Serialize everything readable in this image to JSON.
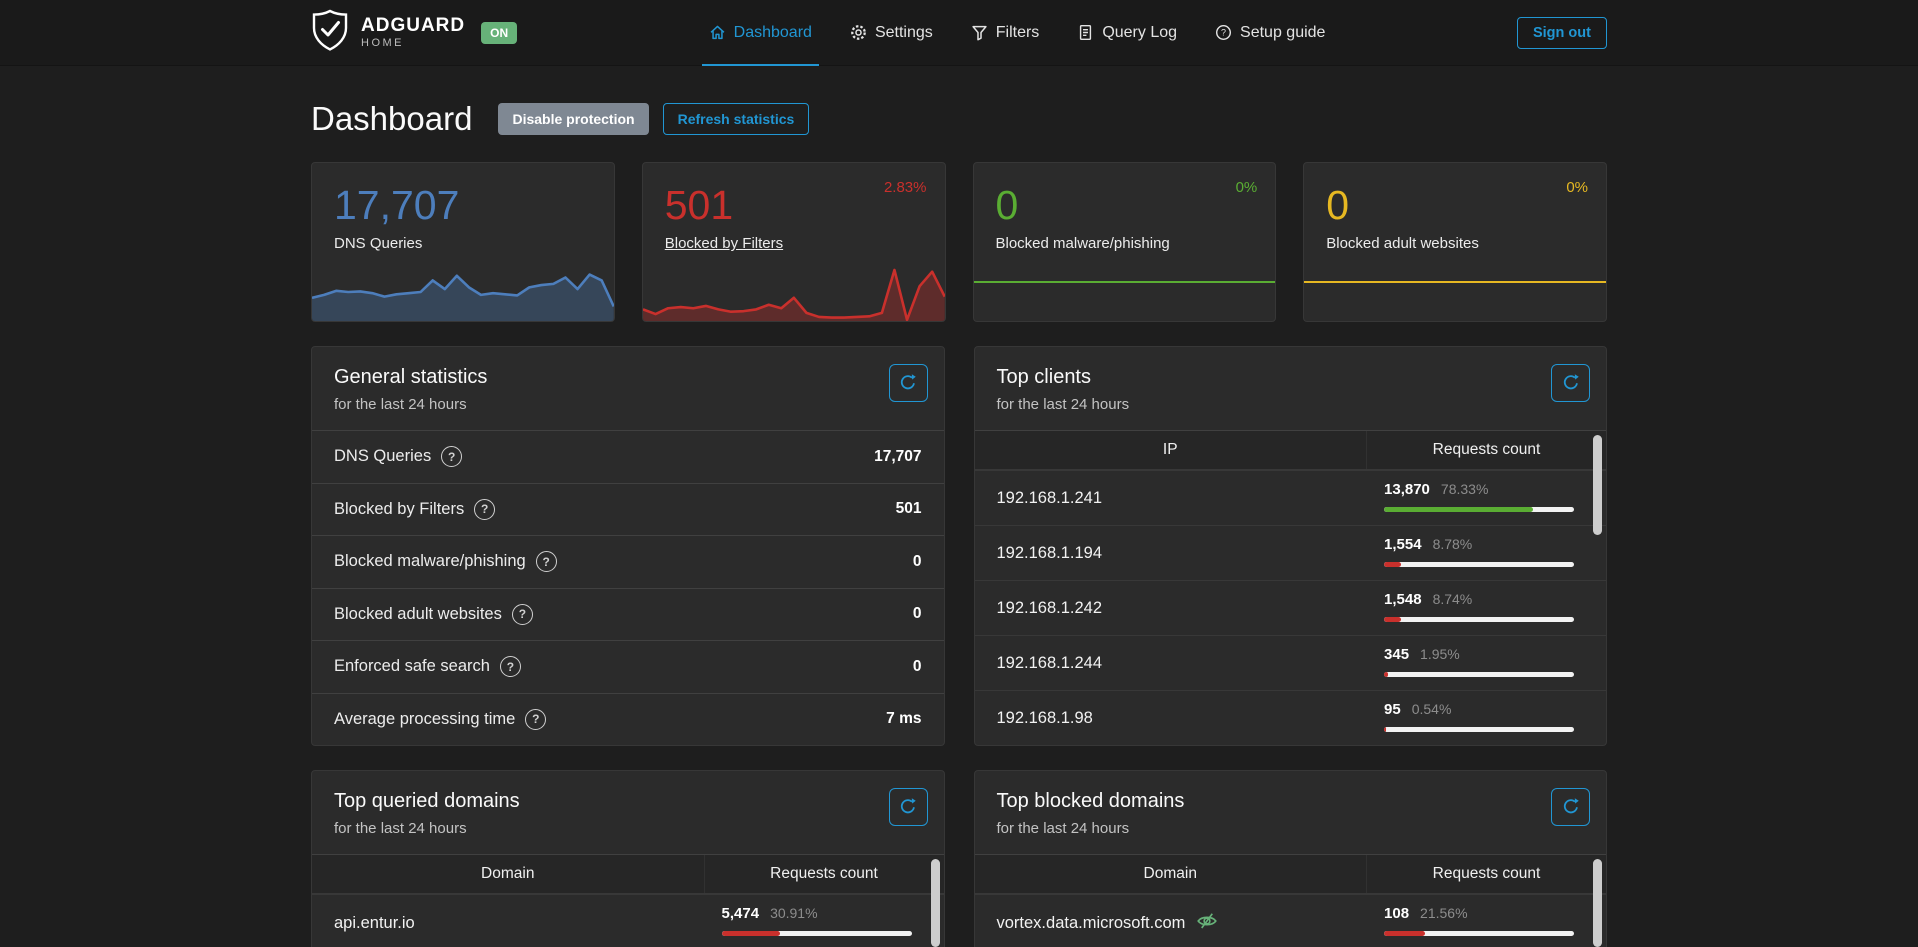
{
  "colors": {
    "accent": "#2196d3",
    "blue": "#4d7ebc",
    "red": "#c9302c",
    "green": "#5aad33",
    "yellow": "#e6b822",
    "badge_green": "#67b279"
  },
  "nav": {
    "brand": {
      "title": "ADGUARD",
      "subtitle": "HOME",
      "status": "ON"
    },
    "items": [
      {
        "label": "Dashboard",
        "icon": "home-icon",
        "active": true
      },
      {
        "label": "Settings",
        "icon": "gear-icon",
        "active": false
      },
      {
        "label": "Filters",
        "icon": "funnel-icon",
        "active": false
      },
      {
        "label": "Query Log",
        "icon": "document-icon",
        "active": false
      },
      {
        "label": "Setup guide",
        "icon": "help-circle-icon",
        "active": false
      }
    ],
    "signout_label": "Sign out"
  },
  "page": {
    "title": "Dashboard",
    "disable_protection_label": "Disable protection",
    "refresh_statistics_label": "Refresh statistics"
  },
  "stat_cards": [
    {
      "value": "17,707",
      "label": "DNS Queries",
      "percent": "",
      "color": "#4d7ebc",
      "spark": [
        60,
        55,
        48,
        50,
        49,
        52,
        58,
        54,
        52,
        50,
        30,
        45,
        22,
        42,
        55,
        52,
        54,
        56,
        42,
        38,
        36,
        25,
        45,
        20,
        30,
        75
      ]
    },
    {
      "value": "501",
      "label": "Blocked by Filters",
      "percent": "2.83%",
      "color": "#c9302c",
      "spark": [
        80,
        88,
        78,
        76,
        78,
        74,
        80,
        84,
        83,
        80,
        72,
        78,
        60,
        86,
        93,
        94,
        94,
        93,
        92,
        86,
        12,
        98,
        40,
        15,
        58
      ]
    },
    {
      "value": "0",
      "label": "Blocked malware/phishing",
      "percent": "0%",
      "color": "#5aad33",
      "spark": []
    },
    {
      "value": "0",
      "label": "Blocked adult websites",
      "percent": "0%",
      "color": "#e6b822",
      "spark": []
    }
  ],
  "panels": {
    "general": {
      "title": "General statistics",
      "subtitle": "for the last 24 hours",
      "rows": [
        {
          "label": "DNS Queries",
          "value": "17,707"
        },
        {
          "label": "Blocked by Filters",
          "value": "501"
        },
        {
          "label": "Blocked malware/phishing",
          "value": "0"
        },
        {
          "label": "Blocked adult websites",
          "value": "0"
        },
        {
          "label": "Enforced safe search",
          "value": "0"
        },
        {
          "label": "Average processing time",
          "value": "7 ms"
        }
      ]
    },
    "top_clients": {
      "title": "Top clients",
      "subtitle": "for the last 24 hours",
      "col1": "IP",
      "col2": "Requests count",
      "rows": [
        {
          "name": "192.168.1.241",
          "count": "13,870",
          "percent": "78.33%",
          "bar": 78.33,
          "bar_color": "#5aad33"
        },
        {
          "name": "192.168.1.194",
          "count": "1,554",
          "percent": "8.78%",
          "bar": 8.78,
          "bar_color": "#c9302c"
        },
        {
          "name": "192.168.1.242",
          "count": "1,548",
          "percent": "8.74%",
          "bar": 8.74,
          "bar_color": "#c9302c"
        },
        {
          "name": "192.168.1.244",
          "count": "345",
          "percent": "1.95%",
          "bar": 1.95,
          "bar_color": "#c9302c"
        },
        {
          "name": "192.168.1.98",
          "count": "95",
          "percent": "0.54%",
          "bar": 0.54,
          "bar_color": "#c9302c"
        }
      ]
    },
    "top_queried": {
      "title": "Top queried domains",
      "subtitle": "for the last 24 hours",
      "col1": "Domain",
      "col2": "Requests count",
      "rows": [
        {
          "name": "api.entur.io",
          "count": "5,474",
          "percent": "30.91%",
          "bar": 30.91,
          "bar_color": "#c9302c"
        }
      ]
    },
    "top_blocked": {
      "title": "Top blocked domains",
      "subtitle": "for the last 24 hours",
      "col1": "Domain",
      "col2": "Requests count",
      "rows": [
        {
          "name": "vortex.data.microsoft.com",
          "count": "108",
          "percent": "21.56%",
          "bar": 21.56,
          "bar_color": "#c9302c"
        }
      ]
    }
  }
}
